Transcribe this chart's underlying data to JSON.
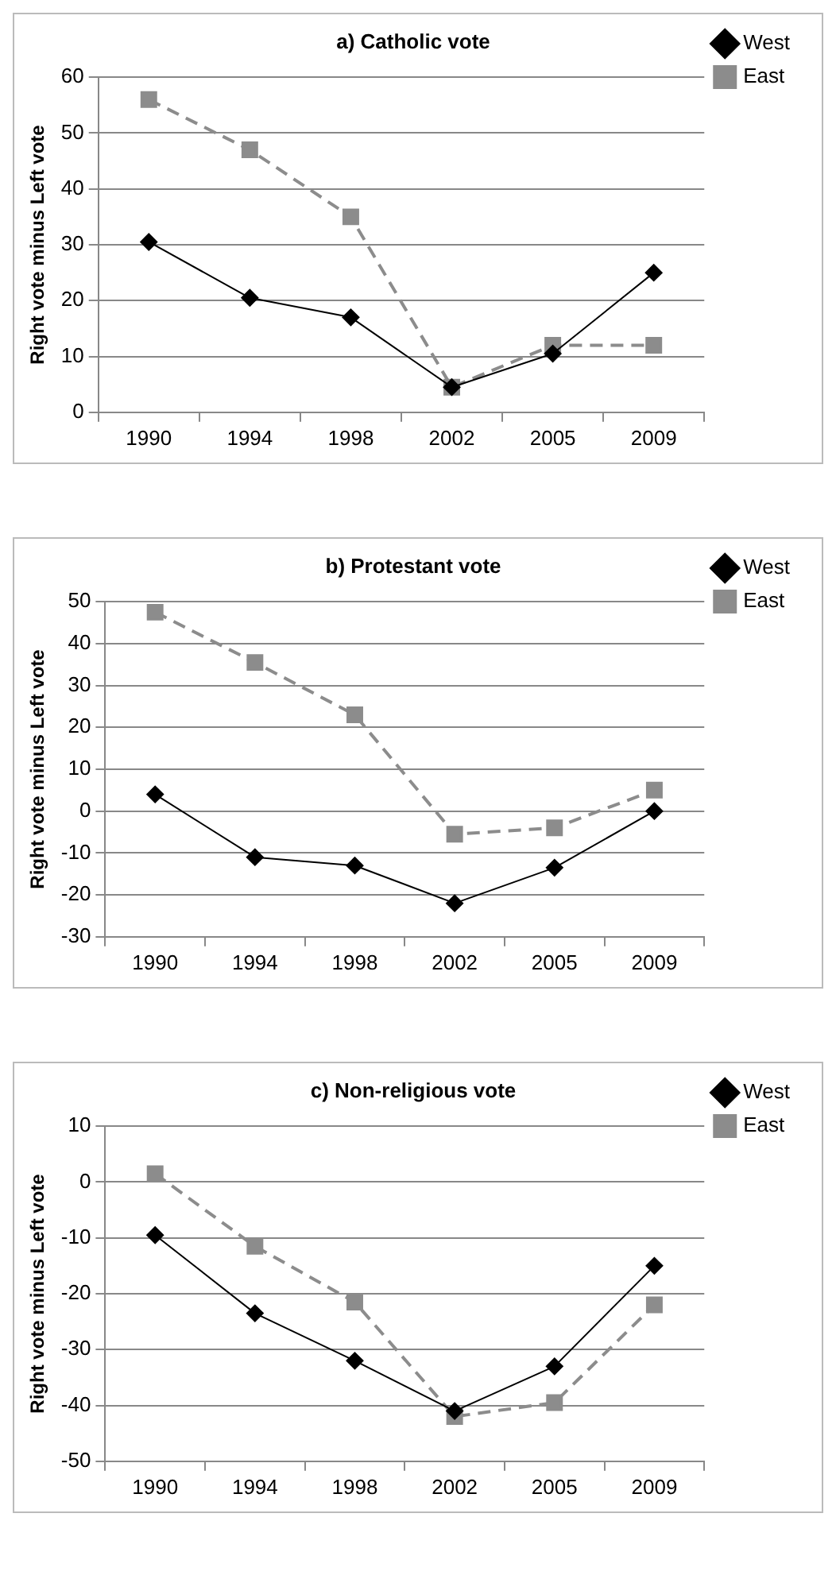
{
  "chart_data": [
    {
      "type": "line",
      "title": "a) Catholic vote",
      "ylabel": "Right vote minus Left vote",
      "categories": [
        "1990",
        "1994",
        "1998",
        "2002",
        "2005",
        "2009"
      ],
      "series": [
        {
          "name": "West",
          "color": "#000000",
          "values": [
            30.5,
            20.5,
            17,
            4.5,
            10.5,
            25
          ],
          "marker": "diamond",
          "line_style": "solid"
        },
        {
          "name": "East",
          "color": "#8c8c8c",
          "values": [
            56,
            47,
            35,
            4.5,
            12,
            12
          ],
          "marker": "square",
          "line_style": "dashed"
        }
      ],
      "ylim": [
        0,
        60
      ],
      "yticks": [
        0,
        10,
        20,
        30,
        40,
        50,
        60
      ],
      "grid": "y",
      "legend": "top right"
    },
    {
      "type": "line",
      "title": "b) Protestant vote",
      "ylabel": "Right vote minus Left vote",
      "categories": [
        "1990",
        "1994",
        "1998",
        "2002",
        "2005",
        "2009"
      ],
      "series": [
        {
          "name": "West",
          "color": "#000000",
          "values": [
            4,
            -11,
            -13,
            -22,
            -13.5,
            0
          ],
          "marker": "diamond",
          "line_style": "solid"
        },
        {
          "name": "East",
          "color": "#8c8c8c",
          "values": [
            47.5,
            35.5,
            23,
            -5.5,
            -4,
            5
          ],
          "marker": "square",
          "line_style": "dashed"
        }
      ],
      "ylim": [
        -30,
        50
      ],
      "yticks": [
        -30,
        -20,
        -10,
        0,
        10,
        20,
        30,
        40,
        50
      ],
      "grid": "y",
      "legend": "top right"
    },
    {
      "type": "line",
      "title": "c) Non-religious vote",
      "ylabel": "Right vote minus Left vote",
      "categories": [
        "1990",
        "1994",
        "1998",
        "2002",
        "2005",
        "2009"
      ],
      "series": [
        {
          "name": "West",
          "color": "#000000",
          "values": [
            -9.5,
            -23.5,
            -32,
            -41,
            -33,
            -15
          ],
          "marker": "diamond",
          "line_style": "solid"
        },
        {
          "name": "East",
          "color": "#8c8c8c",
          "values": [
            1.5,
            -11.5,
            -21.5,
            -42,
            -39.5,
            -22
          ],
          "marker": "square",
          "line_style": "dashed"
        }
      ],
      "ylim": [
        -50,
        10
      ],
      "yticks": [
        -50,
        -40,
        -30,
        -20,
        -10,
        0,
        10
      ],
      "grid": "y",
      "legend": "top right"
    }
  ]
}
